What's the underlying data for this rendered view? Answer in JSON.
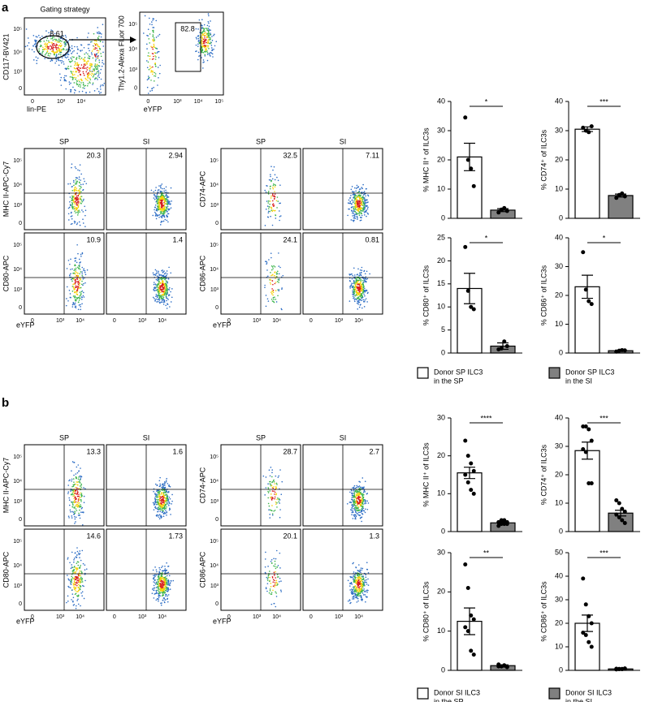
{
  "panel_labels": [
    "a",
    "b"
  ],
  "gating": {
    "title": "Gating strategy",
    "plots": [
      {
        "xlabel": "lin-PE",
        "ylabel": "CD117-BV421",
        "gate": "8.61"
      },
      {
        "xlabel": "eYFP",
        "ylabel": "Thy1.2-Alexa Fluor 700",
        "gate": "82.8"
      }
    ]
  },
  "flow_ticks": [
    "0",
    "10³",
    "10⁴",
    "10⁵"
  ],
  "flow_panels": [
    {
      "columns": [
        "SP",
        "SI"
      ],
      "xlabel": "eYFP",
      "groups": [
        {
          "rows": [
            {
              "ylabel": "MHC II-APC-Cy7",
              "gates": [
                "20.3",
                "2.94"
              ]
            },
            {
              "ylabel": "CD80-APC",
              "gates": [
                "10.9",
                "1.4"
              ]
            }
          ]
        },
        {
          "rows": [
            {
              "ylabel": "CD74-APC",
              "gates": [
                "32.5",
                "7.11"
              ]
            },
            {
              "ylabel": "CD86-APC",
              "gates": [
                "24.1",
                "0.81"
              ]
            }
          ]
        }
      ]
    },
    {
      "columns": [
        "SP",
        "SI"
      ],
      "xlabel": "eYFP",
      "groups": [
        {
          "rows": [
            {
              "ylabel": "MHC II-APC-Cy7",
              "gates": [
                "13.3",
                "1.6"
              ]
            },
            {
              "ylabel": "CD80-APC",
              "gates": [
                "14.6",
                "1.73"
              ]
            }
          ]
        },
        {
          "rows": [
            {
              "ylabel": "CD74-APC",
              "gates": [
                "28.7",
                "2.7"
              ]
            },
            {
              "ylabel": "CD86-APC",
              "gates": [
                "20.1",
                "1.3"
              ]
            }
          ]
        }
      ]
    }
  ],
  "legends": [
    [
      [
        "Donor SP ILC3",
        "in the SP"
      ],
      [
        "Donor SP ILC3",
        "in the SI"
      ]
    ],
    [
      [
        "Donor SI ILC3",
        "in the SP"
      ],
      [
        "Donor SI ILC3",
        "in the SI"
      ]
    ]
  ],
  "chart_data": [
    {
      "type": "bar",
      "ylabel": "% MHC II⁺ of ILC3s",
      "categories": [
        null,
        null
      ],
      "values": [
        21,
        2.8
      ],
      "errors": [
        4.7,
        0.5
      ],
      "points": [
        [
          34.5,
          20,
          17,
          11
        ],
        [
          2,
          3,
          3.5,
          2.5
        ]
      ],
      "colors": [
        "#ffffff",
        "#808080"
      ],
      "significance": "*",
      "ylim": [
        0,
        40
      ],
      "yticks": [
        0,
        10,
        20,
        30,
        40
      ]
    },
    {
      "type": "bar",
      "ylabel": "% CD74⁺ of ILC3s",
      "categories": [
        null,
        null
      ],
      "values": [
        30.5,
        7.8
      ],
      "errors": [
        0.8,
        0.5
      ],
      "points": [
        [
          31,
          30,
          29.5,
          31.5
        ],
        [
          7,
          8,
          8.5,
          7.5
        ]
      ],
      "colors": [
        "#ffffff",
        "#808080"
      ],
      "significance": "***",
      "ylim": [
        0,
        40
      ],
      "yticks": [
        0,
        10,
        20,
        30,
        40
      ]
    },
    {
      "type": "bar",
      "ylabel": "% CD80⁺ of ILC3s",
      "categories": [
        null,
        null
      ],
      "values": [
        14,
        1.5
      ],
      "errors": [
        3.3,
        0.7
      ],
      "points": [
        [
          23,
          13.5,
          10,
          9.5
        ],
        [
          0.8,
          1,
          2.5,
          1.5
        ]
      ],
      "colors": [
        "#ffffff",
        "#808080"
      ],
      "significance": "*",
      "ylim": [
        0,
        25
      ],
      "yticks": [
        0,
        5,
        10,
        15,
        20,
        25
      ]
    },
    {
      "type": "bar",
      "ylabel": "% CD86⁺ of ILC3s",
      "categories": [
        null,
        null
      ],
      "values": [
        23,
        0.8
      ],
      "errors": [
        4,
        0.2
      ],
      "points": [
        [
          35,
          22,
          18,
          17
        ],
        [
          0.5,
          0.8,
          1,
          0.9
        ]
      ],
      "colors": [
        "#ffffff",
        "#808080"
      ],
      "significance": "*",
      "ylim": [
        0,
        40
      ],
      "yticks": [
        0,
        10,
        20,
        30,
        40
      ]
    },
    {
      "type": "bar",
      "ylabel": "% MHC II⁺ of ILC3s",
      "categories": [
        null,
        null
      ],
      "values": [
        15.5,
        2.3
      ],
      "errors": [
        1.5,
        0.3
      ],
      "points": [
        [
          24,
          20,
          18,
          16,
          15,
          13,
          11,
          10
        ],
        [
          1.5,
          2,
          2,
          2.5,
          2.5,
          3,
          3,
          2
        ]
      ],
      "colors": [
        "#ffffff",
        "#808080"
      ],
      "significance": "****",
      "ylim": [
        0,
        30
      ],
      "yticks": [
        0,
        10,
        20,
        30
      ]
    },
    {
      "type": "bar",
      "ylabel": "% CD74⁺ of ILC3s",
      "categories": [
        null,
        null
      ],
      "values": [
        28.5,
        6.5
      ],
      "errors": [
        3,
        1
      ],
      "points": [
        [
          37,
          37,
          36,
          32,
          29,
          28,
          17,
          17
        ],
        [
          11,
          10,
          8,
          7,
          6,
          5,
          4,
          3
        ]
      ],
      "colors": [
        "#ffffff",
        "#808080"
      ],
      "significance": "***",
      "ylim": [
        0,
        40
      ],
      "yticks": [
        0,
        10,
        20,
        30,
        40
      ]
    },
    {
      "type": "bar",
      "ylabel": "% CD80⁺ of ILC3s",
      "categories": [
        null,
        null
      ],
      "values": [
        12.5,
        1.2
      ],
      "errors": [
        3.4,
        0.2
      ],
      "points": [
        [
          27,
          21,
          14,
          13,
          11,
          10,
          5,
          4
        ],
        [
          1,
          1,
          1.2,
          0.8,
          1.5,
          1,
          1.3,
          0.9
        ]
      ],
      "colors": [
        "#ffffff",
        "#808080"
      ],
      "significance": "**",
      "ylim": [
        0,
        30
      ],
      "yticks": [
        0,
        10,
        20,
        30
      ]
    },
    {
      "type": "bar",
      "ylabel": "% CD86⁺ of ILC3s",
      "categories": [
        null,
        null
      ],
      "values": [
        20,
        0.6
      ],
      "errors": [
        3.5,
        0.1
      ],
      "points": [
        [
          39,
          28,
          23,
          20,
          16,
          15,
          12,
          10
        ],
        [
          0.4,
          0.6,
          0.5,
          0.8,
          0.7,
          0.5,
          0.6,
          0.7
        ]
      ],
      "colors": [
        "#ffffff",
        "#808080"
      ],
      "significance": "***",
      "ylim": [
        0,
        50
      ],
      "yticks": [
        0,
        10,
        20,
        30,
        40,
        50
      ]
    }
  ]
}
